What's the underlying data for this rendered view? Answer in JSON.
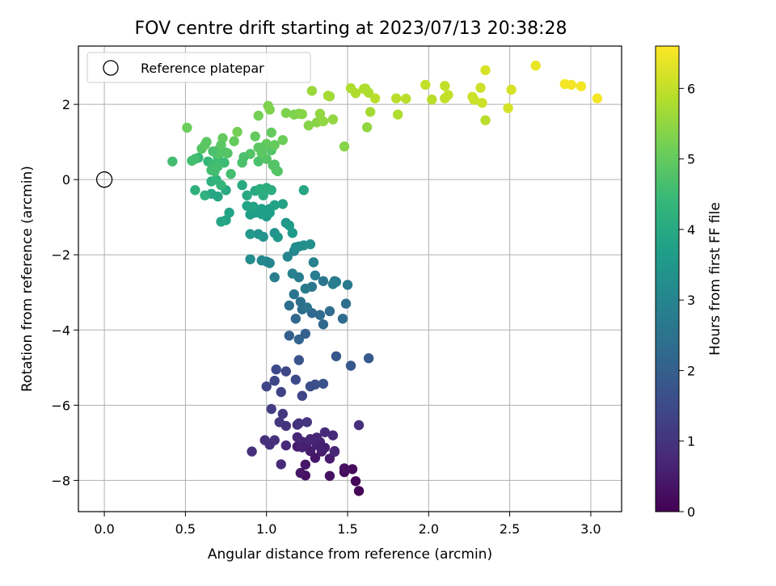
{
  "chart_data": {
    "type": "scatter",
    "title": "FOV centre drift starting at 2023/07/13 20:38:28",
    "xlabel": "Angular distance from reference (arcmin)",
    "ylabel": "Rotation from reference (arcmin)",
    "xlim": [
      -0.16,
      3.19
    ],
    "ylim": [
      -8.83,
      3.55
    ],
    "xticks": [
      0.0,
      0.5,
      1.0,
      1.5,
      2.0,
      2.5,
      3.0
    ],
    "xtick_labels": [
      "0.0",
      "0.5",
      "1.0",
      "1.5",
      "2.0",
      "2.5",
      "3.0"
    ],
    "yticks": [
      -8,
      -6,
      -4,
      -2,
      0,
      2
    ],
    "ytick_labels": [
      "−8",
      "−6",
      "−4",
      "−2",
      "0",
      "2"
    ],
    "grid": true,
    "legend": {
      "position": "top-left",
      "entries": [
        "Reference platepar"
      ]
    },
    "reference_point": {
      "x": 0.0,
      "y": 0.0,
      "label": "Reference platepar"
    },
    "colorbar": {
      "label": "Hours from first FF file",
      "colormap": "viridis",
      "range": [
        0,
        6.6
      ],
      "ticks": [
        0,
        1,
        2,
        3,
        4,
        5,
        6
      ],
      "tick_labels": [
        "0",
        "1",
        "2",
        "3",
        "4",
        "5",
        "6"
      ]
    },
    "colormap_stops": [
      "#440154",
      "#482878",
      "#3e4989",
      "#31688e",
      "#26828e",
      "#1f9e89",
      "#35b779",
      "#6ece58",
      "#b5de2b",
      "#fde725"
    ],
    "series": [
      {
        "x": [
          1.57,
          1.55,
          1.48,
          1.53,
          1.39,
          1.48,
          1.24,
          1.21,
          1.24,
          1.3,
          1.39,
          1.34,
          1.27,
          1.19,
          1.25,
          1.31,
          1.36,
          1.42,
          1.22,
          1.19,
          1.27,
          1.33,
          1.31,
          1.36,
          1.41,
          1.09,
          1.12,
          1.19,
          1.05,
          0.99,
          1.02,
          0.91,
          1.12,
          1.2,
          1.25,
          1.22,
          1.33,
          1.42,
          1.08,
          1.1,
          1.03,
          1.57
        ],
        "y": [
          -8.28,
          -8.02,
          -7.78,
          -7.7,
          -7.88,
          -7.68,
          -7.87,
          -7.8,
          -7.58,
          -7.4,
          -7.42,
          -7.23,
          -7.22,
          -7.1,
          -7.0,
          -7.06,
          -7.13,
          -7.22,
          -6.97,
          -6.85,
          -6.9,
          -6.98,
          -6.86,
          -6.72,
          -6.8,
          -7.57,
          -7.07,
          -6.52,
          -6.93,
          -6.93,
          -7.05,
          -7.23,
          -6.55,
          -6.48,
          -6.45,
          -7.12,
          -7.08,
          -7.24,
          -6.45,
          -6.23,
          -6.1,
          -6.53
        ],
        "t": [
          0.1,
          0.1,
          0.2,
          0.2,
          0.3,
          0.3,
          0.3,
          0.4,
          0.4,
          0.4,
          0.5,
          0.5,
          0.5,
          0.5,
          0.6,
          0.6,
          0.6,
          0.6,
          0.7,
          0.7,
          0.7,
          0.7,
          0.7,
          0.8,
          0.8,
          0.8,
          0.8,
          0.9,
          0.9,
          0.9,
          0.9,
          0.9,
          1.0,
          1.0,
          1.0,
          0.6,
          0.6,
          0.7,
          1.1,
          1.1,
          1.2,
          0.9
        ]
      },
      {
        "x": [
          1.09,
          1.12,
          1.05,
          1.0,
          1.06,
          1.18,
          1.22,
          1.27,
          1.3,
          1.35,
          1.43,
          1.52,
          1.63,
          1.2
        ],
        "y": [
          -5.65,
          -5.1,
          -5.35,
          -5.5,
          -5.05,
          -5.32,
          -5.75,
          -5.5,
          -5.45,
          -5.43,
          -4.7,
          -4.95,
          -4.75,
          -4.8
        ],
        "t": [
          1.3,
          1.4,
          1.4,
          1.4,
          1.5,
          1.5,
          1.4,
          1.6,
          1.6,
          1.7,
          1.8,
          1.8,
          1.9,
          1.7
        ]
      },
      {
        "x": [
          1.14,
          1.24,
          1.2,
          1.18,
          1.28,
          1.33,
          1.39,
          1.47,
          1.35,
          1.22,
          1.14,
          1.21,
          1.25,
          1.28,
          1.35,
          1.42,
          1.5,
          1.17,
          1.24,
          1.29,
          1.41,
          1.43,
          1.49,
          1.16,
          1.17,
          1.13,
          1.2,
          1.3,
          1.05,
          1.0,
          1.02,
          0.97,
          1.2,
          1.18,
          1.23,
          1.27
        ],
        "y": [
          -4.15,
          -4.1,
          -4.25,
          -3.7,
          -3.55,
          -3.6,
          -3.5,
          -3.7,
          -3.85,
          -3.45,
          -3.35,
          -3.25,
          -3.4,
          -2.85,
          -2.7,
          -2.7,
          -2.8,
          -3.05,
          -2.9,
          -2.2,
          -2.78,
          -2.72,
          -3.3,
          -2.5,
          -1.9,
          -2.05,
          -2.6,
          -2.55,
          -2.6,
          -2.18,
          -2.22,
          -2.15,
          -1.78,
          -1.8,
          -1.75,
          -1.72
        ],
        "t": [
          2.0,
          2.0,
          2.1,
          2.2,
          2.2,
          2.3,
          2.3,
          2.3,
          2.2,
          2.4,
          2.4,
          2.4,
          2.5,
          2.6,
          2.6,
          2.7,
          2.7,
          2.6,
          2.7,
          2.9,
          2.8,
          2.8,
          2.4,
          2.9,
          3.0,
          3.0,
          2.8,
          2.8,
          2.8,
          3.0,
          3.0,
          3.1,
          3.2,
          3.2,
          3.3,
          3.3
        ]
      },
      {
        "x": [
          0.9,
          0.98,
          1.05,
          1.07,
          1.12,
          1.14,
          1.16,
          1.02,
          1.0,
          0.9,
          0.93,
          0.97,
          1.05,
          1.1,
          0.77,
          0.75,
          0.72,
          0.7,
          0.66,
          0.75,
          0.85,
          0.88,
          0.93,
          0.96,
          0.98,
          1.0,
          1.03,
          0.88,
          1.23,
          0.95,
          0.9,
          1.0,
          1.02,
          0.62,
          0.56,
          0.66,
          0.69,
          0.72,
          0.9,
          0.92,
          0.97
        ],
        "y": [
          -2.12,
          -1.52,
          -1.42,
          -1.53,
          -1.15,
          -1.22,
          -1.42,
          -0.78,
          -0.98,
          -0.93,
          -0.88,
          -0.78,
          -0.68,
          -0.65,
          -0.88,
          -1.08,
          -1.12,
          -0.45,
          -0.38,
          -0.28,
          -0.15,
          -0.42,
          -0.3,
          -0.25,
          -0.42,
          -0.22,
          -0.28,
          -0.7,
          -0.28,
          -1.45,
          -1.45,
          -0.82,
          -0.88,
          -0.42,
          -0.28,
          -0.05,
          -0.0,
          -0.15,
          -0.75,
          -0.72,
          -0.92
        ],
        "t": [
          3.2,
          3.4,
          3.4,
          3.5,
          3.5,
          3.6,
          3.6,
          3.6,
          3.6,
          3.7,
          3.7,
          3.7,
          3.8,
          3.8,
          3.8,
          3.8,
          3.9,
          3.9,
          3.9,
          4.0,
          4.0,
          4.0,
          4.0,
          4.1,
          4.1,
          4.1,
          4.1,
          3.8,
          3.9,
          3.4,
          3.5,
          3.7,
          3.7,
          4.2,
          4.2,
          4.2,
          4.3,
          4.3,
          3.8,
          3.8,
          3.7
        ]
      },
      {
        "x": [
          0.58,
          0.64,
          0.67,
          0.7,
          0.74,
          0.78,
          0.7,
          0.68,
          0.66,
          0.71,
          0.75,
          0.85,
          0.95,
          1.0,
          1.04,
          1.07,
          1.03,
          0.97,
          0.95,
          1.0,
          1.05,
          0.93,
          1.1,
          1.03,
          0.97,
          0.9,
          0.86,
          0.76,
          0.8,
          0.73,
          0.7,
          0.67,
          0.63,
          0.6,
          0.56,
          0.54,
          0.42,
          0.51,
          0.62,
          1.05,
          1.06,
          0.72
        ],
        "y": [
          0.58,
          0.48,
          0.4,
          0.6,
          0.45,
          0.15,
          0.35,
          0.22,
          0.25,
          0.82,
          0.72,
          0.45,
          0.48,
          0.55,
          0.38,
          0.22,
          0.78,
          0.7,
          0.85,
          0.95,
          0.92,
          1.15,
          1.05,
          1.25,
          0.85,
          0.68,
          0.6,
          0.7,
          1.02,
          1.1,
          0.68,
          0.75,
          1.0,
          0.82,
          0.55,
          0.5,
          0.48,
          1.38,
          0.92,
          0.4,
          0.25,
          0.92
        ],
        "t": [
          4.4,
          4.4,
          4.5,
          4.5,
          4.5,
          4.6,
          4.6,
          4.6,
          4.6,
          4.7,
          4.7,
          4.7,
          4.7,
          4.8,
          4.8,
          4.8,
          4.8,
          4.9,
          4.9,
          5.0,
          5.0,
          5.0,
          5.1,
          5.0,
          4.9,
          4.8,
          4.7,
          4.8,
          5.0,
          5.0,
          4.8,
          4.7,
          4.9,
          4.8,
          4.6,
          4.6,
          4.6,
          5.1,
          4.9,
          4.8,
          4.8,
          4.9
        ]
      },
      {
        "x": [
          0.82,
          0.95,
          1.01,
          1.02,
          1.12,
          1.17,
          1.2,
          1.22,
          1.26,
          1.31,
          1.33,
          1.35,
          1.39,
          1.41,
          1.48,
          1.6,
          1.62,
          1.64,
          1.28,
          1.38,
          1.52,
          1.55,
          1.61,
          1.63,
          1.67,
          1.8,
          1.81,
          1.86,
          1.98,
          2.02,
          2.1,
          2.12,
          2.1,
          2.27,
          2.28,
          2.32,
          2.33,
          2.35,
          2.35,
          2.49,
          2.51,
          2.66,
          2.84,
          2.88,
          2.94,
          3.04
        ],
        "y": [
          1.27,
          1.7,
          1.96,
          1.86,
          1.77,
          1.73,
          1.75,
          1.74,
          1.44,
          1.52,
          1.75,
          1.55,
          2.21,
          1.6,
          0.88,
          2.41,
          1.39,
          1.8,
          2.36,
          2.23,
          2.43,
          2.3,
          2.42,
          2.31,
          2.16,
          2.16,
          1.73,
          2.15,
          2.52,
          2.13,
          2.49,
          2.25,
          2.16,
          2.2,
          2.12,
          2.44,
          2.04,
          1.58,
          2.91,
          1.9,
          2.39,
          3.03,
          2.54,
          2.52,
          2.48,
          2.16
        ],
        "t": [
          5.2,
          5.2,
          5.3,
          5.3,
          5.3,
          5.3,
          5.3,
          5.4,
          5.4,
          5.4,
          5.5,
          5.5,
          5.6,
          5.5,
          5.4,
          5.8,
          5.5,
          5.7,
          5.6,
          5.7,
          5.8,
          5.8,
          5.8,
          5.8,
          5.9,
          5.9,
          5.8,
          5.9,
          6.0,
          5.9,
          6.0,
          6.0,
          6.0,
          6.1,
          6.1,
          6.1,
          6.1,
          5.9,
          6.2,
          6.2,
          6.2,
          6.4,
          6.5,
          6.5,
          6.5,
          6.5
        ]
      }
    ]
  }
}
